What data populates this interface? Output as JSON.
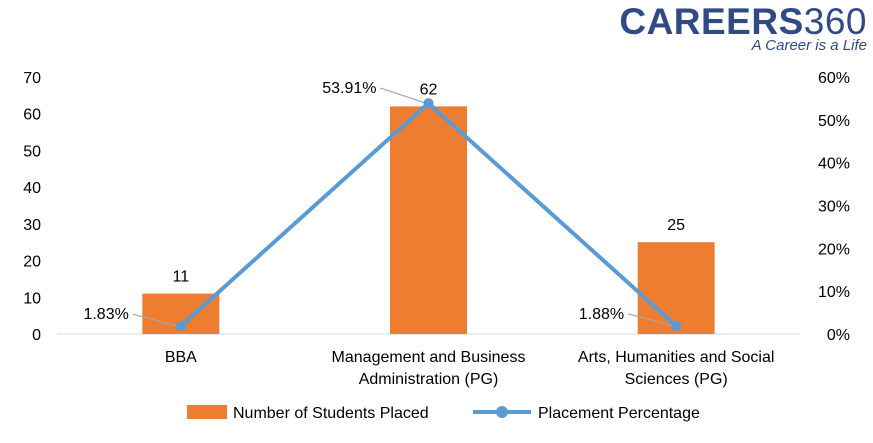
{
  "logo": {
    "word": "CAREERS",
    "number": "360",
    "tagline": "A Career is a Life"
  },
  "colors": {
    "bar": "#ed7d31",
    "line": "#5b9bd5",
    "axis": "#d9d9d9",
    "text": "#000000"
  },
  "chart_data": {
    "type": "bar",
    "categories": [
      [
        "BBA"
      ],
      [
        "Management and Business",
        "Administration (PG)"
      ],
      [
        "Arts, Humanities and Social",
        "Sciences (PG)"
      ]
    ],
    "series": [
      {
        "name": "Number of Students Placed",
        "type": "bar",
        "axis": "left",
        "values": [
          11,
          62,
          25
        ],
        "labels": [
          "11",
          "62",
          "25"
        ]
      },
      {
        "name": "Placement Percentage",
        "type": "line",
        "axis": "right",
        "values": [
          1.83,
          53.91,
          1.88
        ],
        "labels": [
          "1.83%",
          "53.91%",
          "1.88%"
        ]
      }
    ],
    "y_left": {
      "min": 0,
      "max": 70,
      "ticks": [
        "0",
        "10",
        "20",
        "30",
        "40",
        "50",
        "60",
        "70"
      ]
    },
    "y_right": {
      "min": 0,
      "max": 60,
      "ticks": [
        "0%",
        "10%",
        "20%",
        "30%",
        "40%",
        "50%",
        "60%"
      ]
    },
    "grid": false,
    "legend_position": "bottom"
  }
}
